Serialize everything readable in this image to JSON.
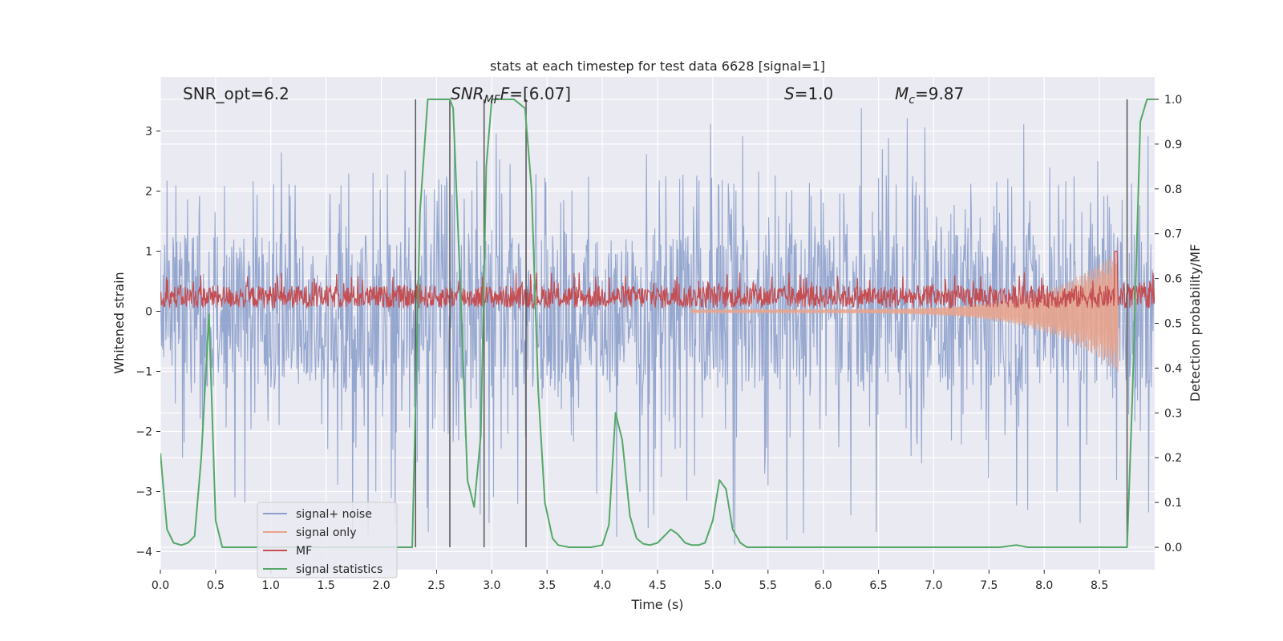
{
  "chart_data": {
    "type": "line",
    "title": "stats at each timestep for test data 6628 [signal=1]",
    "xlabel": "Time (s)",
    "ylabel": "Whitened strain",
    "y2label": "Detection probability/MF",
    "xlim": [
      0.0,
      9.0
    ],
    "ylim": [
      -4.3,
      3.9
    ],
    "y2lim": [
      -0.05,
      1.05
    ],
    "xticks": [
      "0.0",
      "0.5",
      "1.0",
      "1.5",
      "2.0",
      "2.5",
      "3.0",
      "3.5",
      "4.0",
      "4.5",
      "5.0",
      "5.5",
      "6.0",
      "6.5",
      "7.0",
      "7.5",
      "8.0",
      "8.5"
    ],
    "yticks": [
      "−4",
      "−3",
      "−2",
      "−1",
      "0",
      "1",
      "2",
      "3"
    ],
    "y2ticks": [
      "0.0",
      "0.1",
      "0.2",
      "0.3",
      "0.4",
      "0.5",
      "0.6",
      "0.7",
      "0.8",
      "0.9",
      "1.0"
    ],
    "grid": true,
    "legend_position": "lower-left",
    "annotations": {
      "snr_opt": "SNR_opt=6.2",
      "snr_mf_main": "SNR",
      "snr_mf_sub": "MF",
      "snr_mf_value": "=[6.07]",
      "s_symbol": "S",
      "s_value": "=1.0",
      "mc_main": "M",
      "mc_sub": "c",
      "mc_value": "=9.87"
    },
    "vertical_lines_x": [
      2.31,
      2.62,
      2.93,
      3.31,
      8.75
    ],
    "series": [
      {
        "name": "signal+ noise",
        "color": "#8da0cb",
        "axis": "left",
        "description_note": "",
        "noise_band": [
          -1.3,
          1.3
        ],
        "spike_range": [
          -3.9,
          3.4
        ]
      },
      {
        "name": "signal only",
        "color": "#e8a48d",
        "axis": "left",
        "chirp_start": 4.8,
        "chirp_end": 8.67,
        "chirp_peak": 1.0
      },
      {
        "name": "MF",
        "color": "#c44e52",
        "axis": "left",
        "baseline_range": [
          0.0,
          0.5
        ],
        "peak": {
          "x": 8.65,
          "y": 1.0
        }
      },
      {
        "name": "signal statistics",
        "color": "#55a868",
        "axis": "right",
        "x": [
          0.0,
          0.06,
          0.12,
          0.19,
          0.25,
          0.31,
          0.37,
          0.44,
          0.5,
          0.56,
          0.62,
          0.69,
          0.75,
          0.81,
          0.87,
          0.94,
          1.0,
          1.5,
          2.0,
          2.2,
          2.28,
          2.35,
          2.42,
          2.5,
          2.58,
          2.62,
          2.65,
          2.72,
          2.78,
          2.84,
          2.9,
          2.95,
          3.0,
          3.1,
          3.2,
          3.3,
          3.36,
          3.42,
          3.48,
          3.55,
          3.6,
          3.7,
          3.8,
          3.9,
          4.0,
          4.06,
          4.12,
          4.18,
          4.25,
          4.31,
          4.37,
          4.43,
          4.5,
          4.56,
          4.62,
          4.68,
          4.75,
          4.81,
          4.87,
          4.93,
          5.0,
          5.06,
          5.12,
          5.18,
          5.25,
          5.31,
          5.4,
          6.0,
          7.0,
          7.6,
          7.75,
          7.85,
          8.0,
          8.5,
          8.62,
          8.7,
          8.75,
          8.8,
          8.87,
          8.93,
          9.0
        ],
        "y": [
          0.21,
          0.04,
          0.01,
          0.005,
          0.01,
          0.025,
          0.2,
          0.52,
          0.06,
          0.0,
          0.0,
          0.0,
          0.0,
          0.0,
          0.0,
          0.0,
          0.0,
          0.0,
          0.0,
          0.0,
          0.0,
          0.75,
          1.0,
          1.0,
          1.0,
          1.0,
          0.98,
          0.55,
          0.15,
          0.09,
          0.25,
          0.85,
          1.0,
          1.0,
          1.0,
          0.98,
          0.8,
          0.35,
          0.1,
          0.02,
          0.005,
          0.0,
          0.0,
          0.0,
          0.005,
          0.05,
          0.3,
          0.24,
          0.07,
          0.02,
          0.008,
          0.005,
          0.01,
          0.025,
          0.04,
          0.03,
          0.01,
          0.005,
          0.005,
          0.01,
          0.06,
          0.15,
          0.13,
          0.04,
          0.01,
          0.0,
          0.0,
          0.0,
          0.0,
          0.0,
          0.005,
          0.0,
          0.0,
          0.0,
          0.0,
          0.0,
          0.0,
          0.35,
          0.95,
          1.0,
          1.0
        ]
      }
    ]
  }
}
